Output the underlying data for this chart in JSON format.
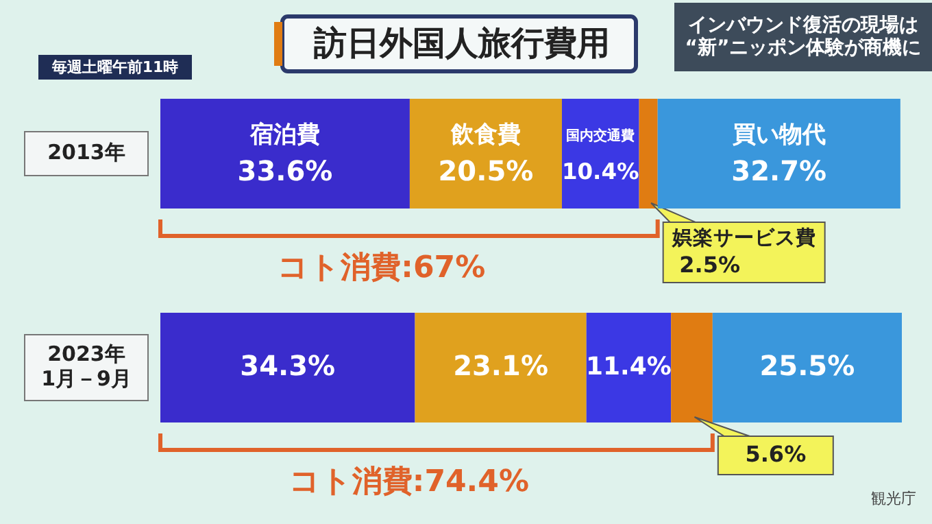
{
  "chart_data": {
    "type": "bar",
    "orientation": "horizontal",
    "stacked": true,
    "title": "訪日外国人旅行費用",
    "categories": [
      "2013年",
      "2023年\n1月－9月"
    ],
    "series": [
      {
        "name": "宿泊費",
        "color": "#3a2ccc",
        "values": [
          33.6,
          34.3
        ],
        "value_labels": [
          "33.6%",
          "34.3%"
        ]
      },
      {
        "name": "飲食費",
        "color": "#e0a11e",
        "values": [
          20.5,
          23.1
        ],
        "value_labels": [
          "20.5%",
          "23.1%"
        ]
      },
      {
        "name": "国内交通費",
        "color": "#3b38e4",
        "values": [
          10.4,
          11.4
        ],
        "value_labels": [
          "10.4%",
          "11.4%"
        ]
      },
      {
        "name": "娯楽サービス費",
        "color": "#e07c12",
        "values": [
          2.5,
          5.6
        ],
        "value_labels": [
          "2.5%",
          "5.6%"
        ]
      },
      {
        "name": "買い物代",
        "color": "#3a97dc",
        "values": [
          32.7,
          25.5
        ],
        "value_labels": [
          "32.7%",
          "25.5%"
        ]
      }
    ],
    "annotations": [
      "インバウンド復活の現場は\n“新”ニッポン体験が商機に",
      "毎週土曜午前11時",
      "コト消費:67%",
      "コト消費:74.4%",
      "観光庁"
    ]
  }
}
